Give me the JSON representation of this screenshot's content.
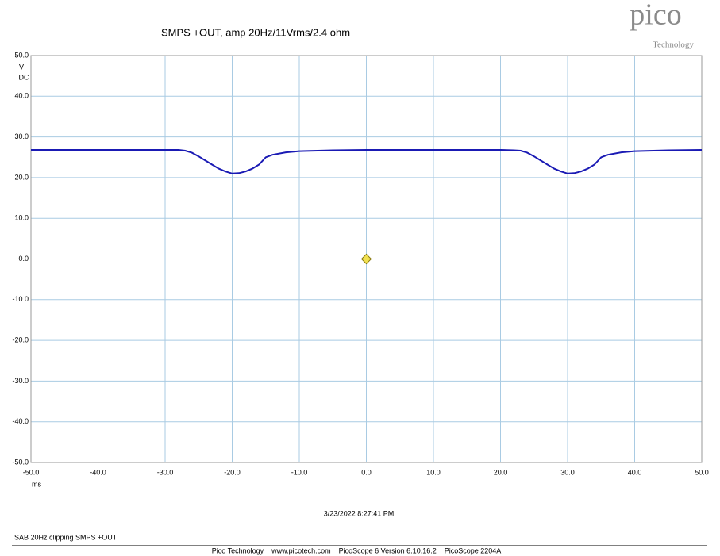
{
  "chart_data": {
    "type": "line",
    "title": "SMPS +OUT, amp 20Hz/11Vrms/2.4 ohm",
    "y_unit": "V",
    "y_coupling": "DC",
    "x_unit": "ms",
    "x": [
      -50,
      -40,
      -30,
      -28,
      -27,
      -26,
      -25,
      -24,
      -23,
      -22,
      -21,
      -20,
      -19,
      -18,
      -17,
      -16,
      -15,
      -14,
      -12,
      -10,
      -5,
      0,
      10,
      20,
      22,
      23,
      24,
      25,
      26,
      27,
      28,
      29,
      30,
      31,
      32,
      33,
      34,
      35,
      36,
      38,
      40,
      45,
      50
    ],
    "values": [
      26.8,
      26.8,
      26.8,
      26.8,
      26.6,
      26.1,
      25.2,
      24.2,
      23.2,
      22.2,
      21.5,
      21.0,
      21.1,
      21.5,
      22.2,
      23.2,
      25.0,
      25.6,
      26.2,
      26.5,
      26.7,
      26.8,
      26.8,
      26.8,
      26.7,
      26.6,
      26.1,
      25.2,
      24.2,
      23.2,
      22.2,
      21.5,
      21.0,
      21.1,
      21.5,
      22.2,
      23.2,
      25.0,
      25.6,
      26.2,
      26.5,
      26.7,
      26.8
    ],
    "color": "#1a1ab4",
    "trigger": {
      "x": 0,
      "y": 0,
      "color": "#f0e050"
    },
    "xlim": [
      -50,
      50
    ],
    "ylim": [
      -50,
      50
    ],
    "xticks": [
      {
        "value": -50,
        "label": "-50.0"
      },
      {
        "value": -40,
        "label": "-40.0"
      },
      {
        "value": -30,
        "label": "-30.0"
      },
      {
        "value": -20,
        "label": "-20.0"
      },
      {
        "value": -10,
        "label": "-10.0"
      },
      {
        "value": 0,
        "label": "0.0"
      },
      {
        "value": 10,
        "label": "10.0"
      },
      {
        "value": 20,
        "label": "20.0"
      },
      {
        "value": 30,
        "label": "30.0"
      },
      {
        "value": 40,
        "label": "40.0"
      },
      {
        "value": 50,
        "label": "50.0"
      }
    ],
    "yticks": [
      {
        "value": 50,
        "label": "50.0"
      },
      {
        "value": 40,
        "label": "40.0"
      },
      {
        "value": 30,
        "label": "30.0"
      },
      {
        "value": 20,
        "label": "20.0"
      },
      {
        "value": 10,
        "label": "10.0"
      },
      {
        "value": 0,
        "label": "0.0"
      },
      {
        "value": -10,
        "label": "-10.0"
      },
      {
        "value": -20,
        "label": "-20.0"
      },
      {
        "value": -30,
        "label": "-30.0"
      },
      {
        "value": -40,
        "label": "-40.0"
      },
      {
        "value": -50,
        "label": "-50.0"
      }
    ],
    "grid": true
  },
  "timestamp": "3/23/2022 8:27:41 PM",
  "caption": "SAB 20Hz clipping SMPS +OUT",
  "footer": "Pico Technology    www.picotech.com    PicoScope 6 Version 6.10.16.2    PicoScope 2204A",
  "logo": {
    "name": "pico",
    "subtitle": "Technology"
  }
}
